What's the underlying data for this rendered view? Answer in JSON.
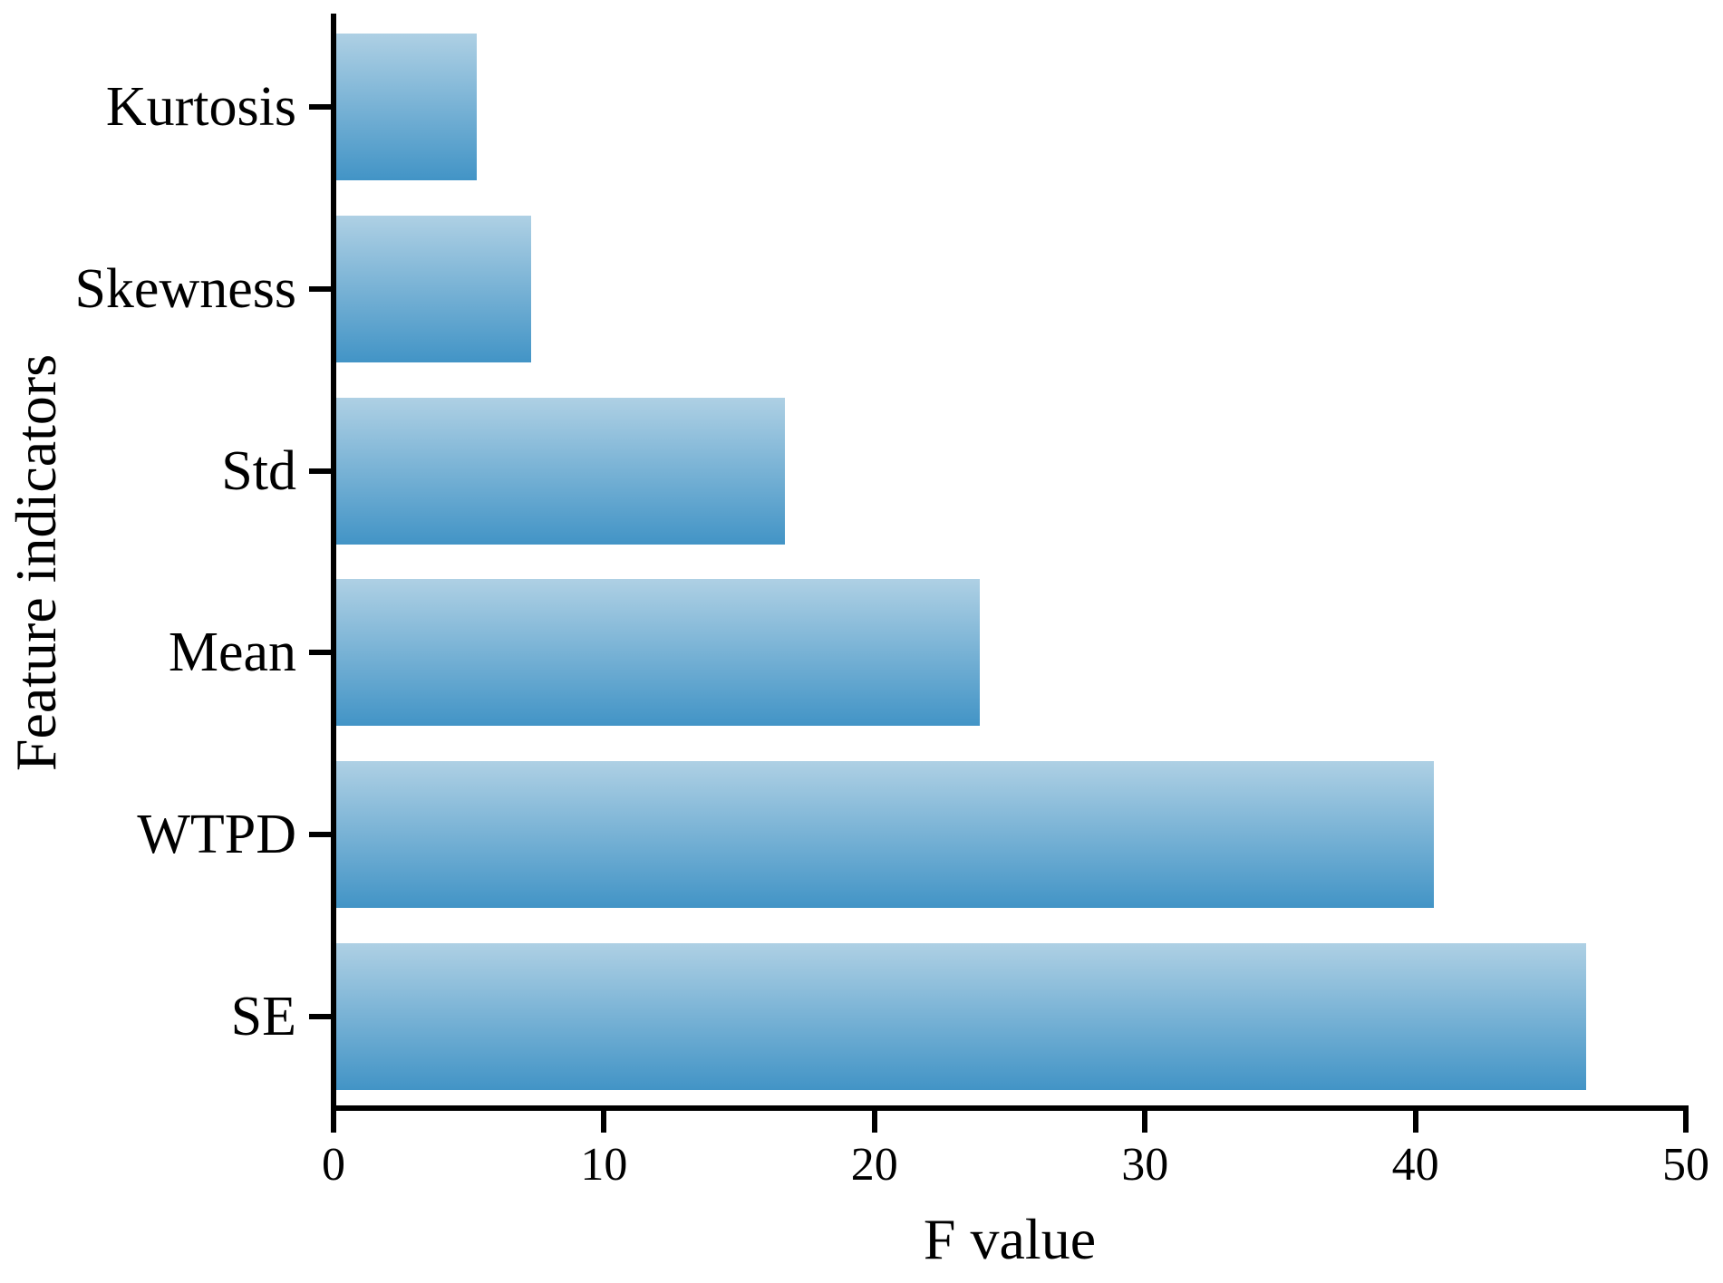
{
  "chart_data": {
    "type": "bar",
    "orientation": "horizontal",
    "title": "",
    "xlabel": "F value",
    "ylabel": "Feature indicators",
    "categories": [
      "Kurtosis",
      "Skewness",
      "Std",
      "Mean",
      "WTPD",
      "SE"
    ],
    "values": [
      5.3,
      7.3,
      16.7,
      23.9,
      40.7,
      46.3
    ],
    "xlim": [
      0,
      50
    ],
    "xticks": [
      0,
      10,
      20,
      30,
      40,
      50
    ],
    "grid": false,
    "legend": "none",
    "bar_gradient_top": "#AED0E4",
    "bar_gradient_bottom": "#4294C6",
    "axis_color": "#000000"
  }
}
